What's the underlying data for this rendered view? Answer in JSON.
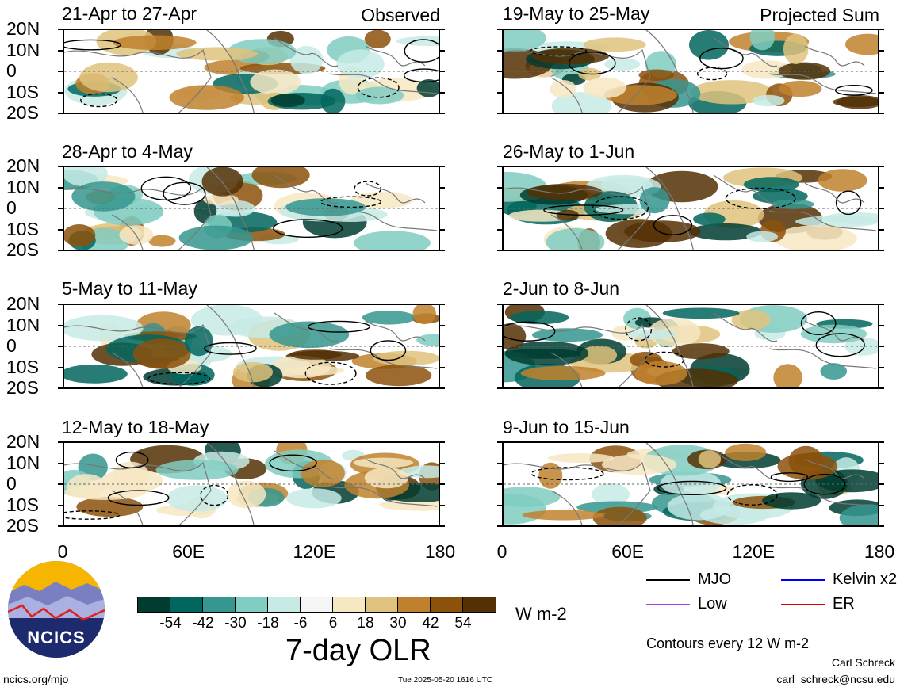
{
  "panels": [
    {
      "title": "21-Apr to 27-Apr",
      "tag": "Observed"
    },
    {
      "title": "19-May to 25-May",
      "tag": "Projected Sum"
    },
    {
      "title": "28-Apr to 4-May",
      "tag": ""
    },
    {
      "title": "26-May to 1-Jun",
      "tag": ""
    },
    {
      "title": "5-May to 11-May",
      "tag": ""
    },
    {
      "title": "2-Jun to 8-Jun",
      "tag": ""
    },
    {
      "title": "12-May to 18-May",
      "tag": ""
    },
    {
      "title": "9-Jun to 15-Jun",
      "tag": ""
    }
  ],
  "y_ticks": [
    "20N",
    "10N",
    "0",
    "10S",
    "20S"
  ],
  "x_ticks": [
    "0",
    "60E",
    "120E",
    "180"
  ],
  "colorbar": {
    "colors": [
      "#003c30",
      "#01665e",
      "#35978f",
      "#80cdc1",
      "#c7eae5",
      "#f5f5f5",
      "#f6e8c3",
      "#dfc27d",
      "#bf812d",
      "#8c510a",
      "#543005"
    ],
    "labels": [
      "-54",
      "-42",
      "-30",
      "-18",
      "-6",
      "6",
      "18",
      "30",
      "42",
      "54"
    ],
    "units": "W m-2",
    "title": "7-day OLR"
  },
  "legend": [
    {
      "label": "MJO",
      "color": "#000000"
    },
    {
      "label": "Kelvin x2",
      "color": "#0000ff"
    },
    {
      "label": "Low",
      "color": "#a040e0"
    },
    {
      "label": "ER",
      "color": "#e00000"
    }
  ],
  "contour_note": "Contours every 12 W m-2",
  "author": "Carl Schreck",
  "email": "carl_schreck@ncsu.edu",
  "website": "ncics.org/mjo",
  "timestamp": "Tue 2025-05-20 1616 UTC",
  "logo_text": "NCICS",
  "chart_data": {
    "type": "heatmap",
    "title": "7-day OLR",
    "xlabel": "",
    "ylabel": "",
    "x_range": [
      "0",
      "180"
    ],
    "y_range": [
      "20S",
      "20N"
    ],
    "x_ticks": [
      "0",
      "60E",
      "120E",
      "180"
    ],
    "y_ticks": [
      "20N",
      "10N",
      "0",
      "10S",
      "20S"
    ],
    "color_levels": [
      -54,
      -42,
      -30,
      -18,
      -6,
      6,
      18,
      30,
      42,
      54
    ],
    "units": "W m-2",
    "contour_interval": 12,
    "panels": [
      "21-Apr to 27-Apr",
      "28-Apr to 4-May",
      "5-May to 11-May",
      "12-May to 18-May",
      "19-May to 25-May",
      "26-May to 1-Jun",
      "2-Jun to 8-Jun",
      "9-Jun to 15-Jun"
    ],
    "observed_label": "Observed",
    "projected_label": "Projected Sum"
  }
}
